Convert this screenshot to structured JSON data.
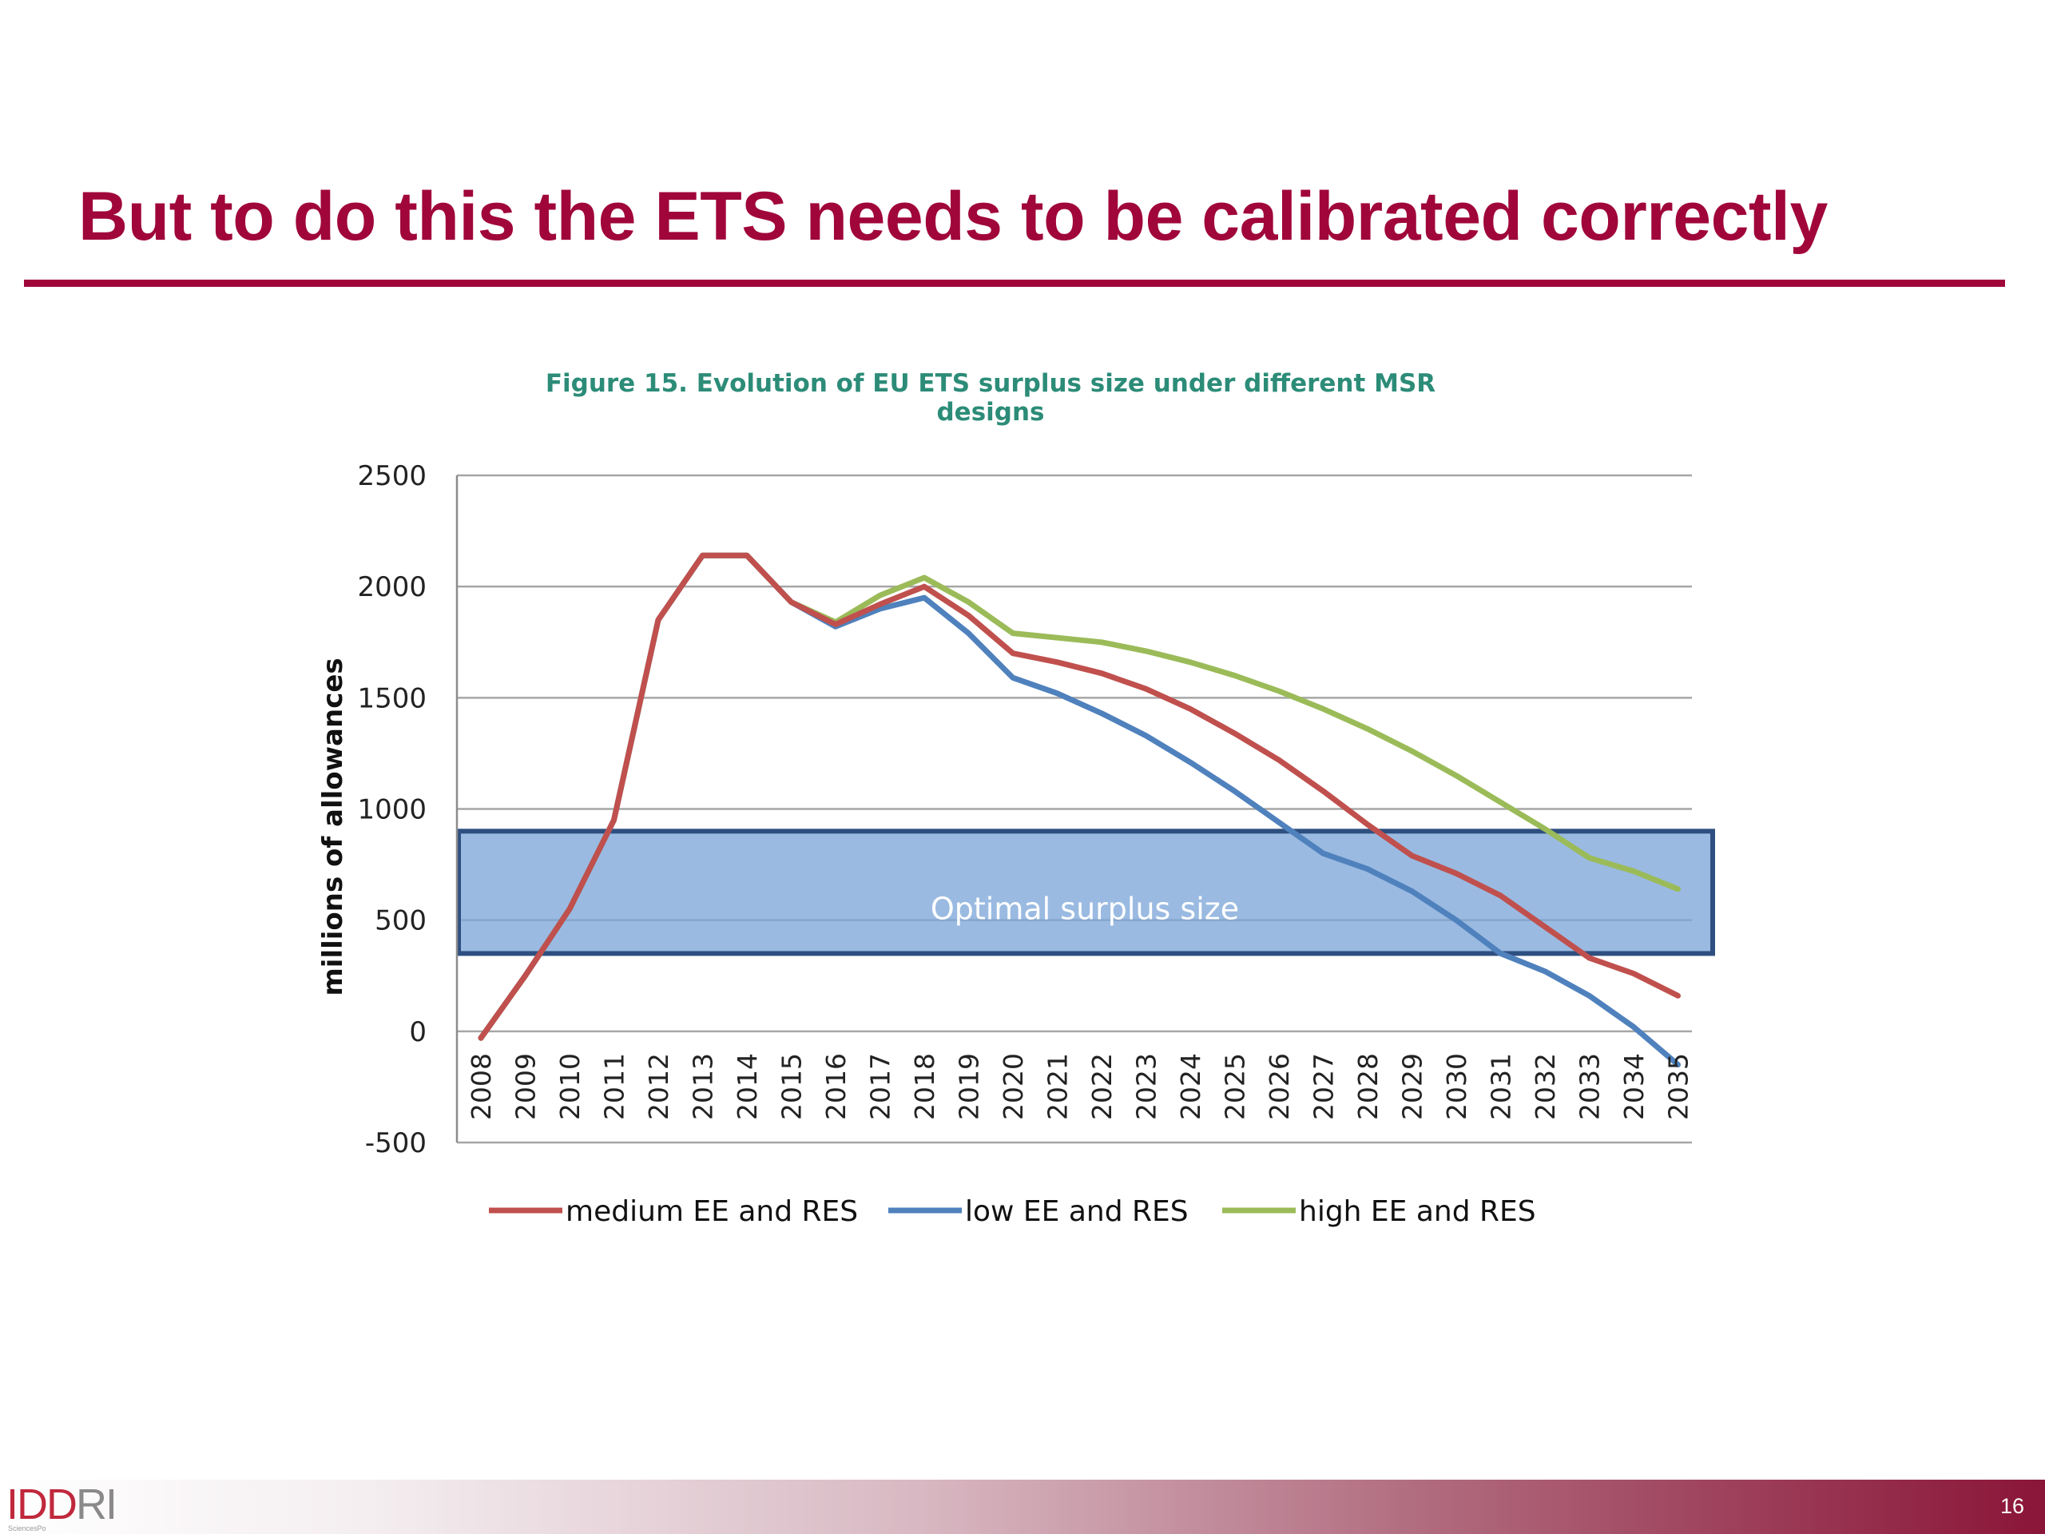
{
  "slide": {
    "title": "But to do this the ETS needs to be calibrated correctly",
    "page_number": "16",
    "logo": {
      "text_part1": "IDD",
      "text_part2": "RI",
      "subtext": "SciencesPo"
    }
  },
  "chart_data": {
    "type": "line",
    "title": "Figure 15. Evolution of EU ETS surplus size under different MSR designs",
    "xlabel": "",
    "ylabel": "millions of allowances",
    "ylim": [
      -500,
      2500
    ],
    "yticks": [
      -500,
      0,
      500,
      1000,
      1500,
      2000,
      2500
    ],
    "grid": true,
    "legend_position": "bottom",
    "x": [
      "2008",
      "2009",
      "2010",
      "2011",
      "2012",
      "2013",
      "2014",
      "2015",
      "2016",
      "2017",
      "2018",
      "2019",
      "2020",
      "2021",
      "2022",
      "2023",
      "2024",
      "2025",
      "2026",
      "2027",
      "2028",
      "2029",
      "2030",
      "2031",
      "2032",
      "2033",
      "2034",
      "2035"
    ],
    "series": [
      {
        "name": "medium EE and RES",
        "color": "#c0504d",
        "values": [
          -30,
          250,
          550,
          950,
          1850,
          2140,
          2140,
          1930,
          1830,
          1920,
          2000,
          1870,
          1700,
          1660,
          1610,
          1540,
          1450,
          1340,
          1220,
          1080,
          930,
          790,
          710,
          610,
          470,
          330,
          260,
          160
        ]
      },
      {
        "name": "low EE and RES",
        "color": "#4f81bd",
        "values": [
          -30,
          250,
          550,
          950,
          1850,
          2140,
          2140,
          1930,
          1820,
          1900,
          1950,
          1790,
          1590,
          1520,
          1430,
          1330,
          1210,
          1080,
          940,
          800,
          730,
          630,
          500,
          350,
          270,
          160,
          20,
          -150
        ]
      },
      {
        "name": "high EE and RES",
        "color": "#9bbb59",
        "values": [
          -30,
          250,
          550,
          950,
          1850,
          2140,
          2140,
          1930,
          1840,
          1960,
          2040,
          1930,
          1790,
          1770,
          1750,
          1710,
          1660,
          1600,
          1530,
          1450,
          1360,
          1260,
          1150,
          1030,
          910,
          780,
          720,
          640
        ]
      }
    ],
    "annotation": {
      "text": "Optimal surplus size",
      "y_range": [
        350,
        900
      ],
      "fill_color": "#7ea6d8",
      "border_color": "#2e4f80"
    }
  }
}
